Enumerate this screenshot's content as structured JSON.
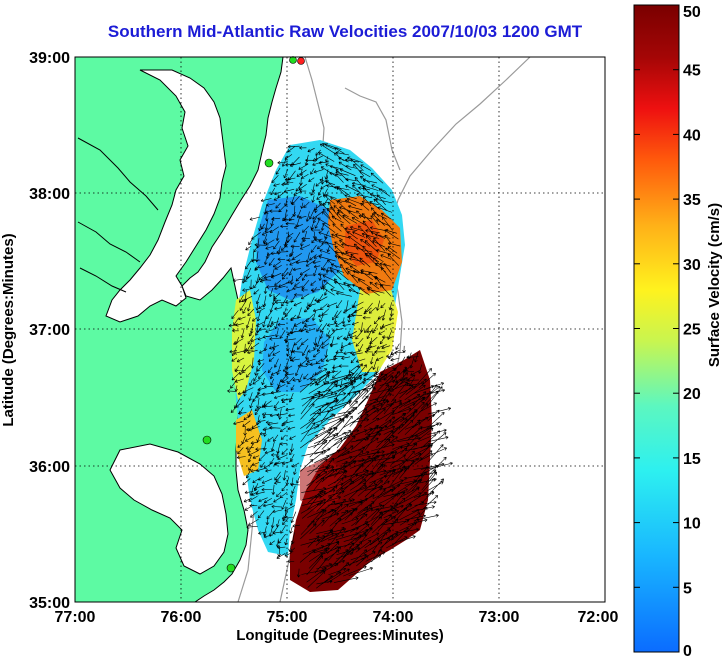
{
  "title": "Southern Mid-Atlantic Raw Velocities 2007/10/03 1200 GMT",
  "map": {
    "xlabel": "Longitude (Degrees:Minutes)",
    "ylabel": "Latitude (Degrees:Minutes)",
    "x_ticks": [
      "77:00",
      "76:00",
      "75:00",
      "74:00",
      "73:00",
      "72:00"
    ],
    "y_ticks": [
      "39:00",
      "38:00",
      "37:00",
      "36:00",
      "35:00"
    ],
    "colors": {
      "land": "#5dfaa3",
      "ocean": "#ffffff",
      "coast": "#000000",
      "bathymetry": "#9a9a9a",
      "station": "#22dd22",
      "station_red": "#ff2020"
    }
  },
  "colorbar": {
    "label": "Surface Velocity (cm/s)",
    "ticks": [
      "50",
      "45",
      "40",
      "35",
      "30",
      "25",
      "20",
      "15",
      "10",
      "5",
      "0"
    ],
    "min": 0,
    "max": 50,
    "colors": [
      "#0b6cff",
      "#19cfff",
      "#51f5d8",
      "#c8f550",
      "#fff21e",
      "#ffb018",
      "#ff5a0c",
      "#ee1010",
      "#a40606",
      "#7a0000"
    ]
  }
}
